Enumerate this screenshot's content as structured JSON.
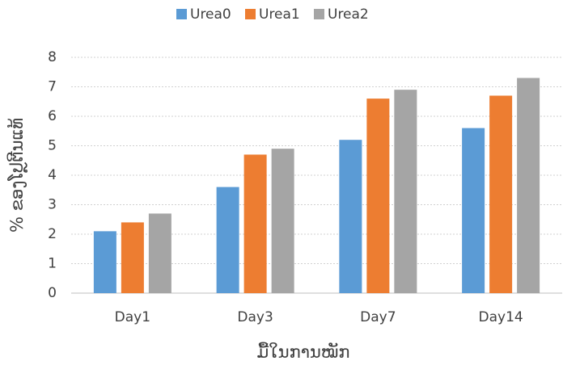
{
  "chart_data": {
    "type": "bar",
    "categories": [
      "Day1",
      "Day3",
      "Day7",
      "Day14"
    ],
    "series": [
      {
        "name": "Urea0",
        "color": "#5b9bd5",
        "values": [
          2.1,
          3.6,
          5.2,
          5.6
        ]
      },
      {
        "name": "Urea1",
        "color": "#ed7d31",
        "values": [
          2.4,
          4.7,
          6.6,
          6.7
        ]
      },
      {
        "name": "Urea2",
        "color": "#a5a5a5",
        "values": [
          2.7,
          4.9,
          6.9,
          7.3
        ]
      }
    ],
    "ylim": [
      0,
      8
    ],
    "yticks": [
      0,
      1,
      2,
      3,
      4,
      5,
      6,
      7,
      8
    ],
    "grid": true,
    "xlabel": "ມື້ໃນການໝັກ",
    "ylabel": "% ຂອງໂປຼຕີນແທ້",
    "legend": "top"
  }
}
